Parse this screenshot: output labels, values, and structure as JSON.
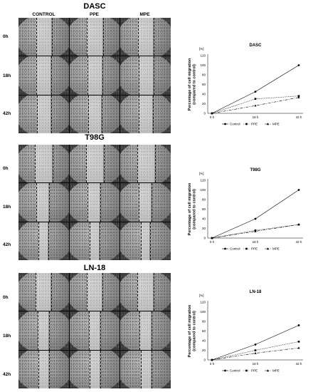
{
  "panels": [
    {
      "title": "DASC",
      "columns": [
        "CONTROL",
        "PPE",
        "MPE"
      ],
      "rows": [
        "0h",
        "18h",
        "42h"
      ]
    },
    {
      "title": "T98G",
      "columns": [],
      "rows": [
        "0h",
        "18h",
        "42h"
      ]
    },
    {
      "title": "LN-18",
      "columns": [],
      "rows": [
        "0h",
        "18h",
        "42h"
      ]
    }
  ],
  "chart_data": [
    {
      "type": "line",
      "title": "DASC",
      "unit_label": "[%]",
      "ylabel": "Percentage of cell migration (compared to control)",
      "categories": [
        "0 h",
        "18 h",
        "42 h"
      ],
      "ylim": [
        0,
        120
      ],
      "yticks": [
        "0",
        "20",
        "40",
        "60",
        "80",
        "100",
        "120"
      ],
      "series": [
        {
          "name": "Control",
          "values": [
            0,
            45,
            100
          ]
        },
        {
          "name": "PPE",
          "values": [
            0,
            30,
            36
          ]
        },
        {
          "name": "MPE",
          "values": [
            0,
            16,
            33
          ]
        }
      ]
    },
    {
      "type": "line",
      "title": "T98G",
      "unit_label": "[%]",
      "ylabel": "Percentage of cell migration (compared to control)",
      "categories": [
        "0 h",
        "18 h",
        "42 h"
      ],
      "ylim": [
        0,
        120
      ],
      "yticks": [
        "0",
        "20",
        "40",
        "60",
        "80",
        "100",
        "120"
      ],
      "series": [
        {
          "name": "Control",
          "values": [
            0,
            40,
            100
          ]
        },
        {
          "name": "PPE",
          "values": [
            0,
            16,
            28
          ]
        },
        {
          "name": "MPE",
          "values": [
            0,
            14,
            28
          ]
        }
      ]
    },
    {
      "type": "line",
      "title": "LN-18",
      "unit_label": "[%]",
      "ylabel": "Percentage of cell migration (compared to control)",
      "categories": [
        "0 h",
        "18 h",
        "42 h"
      ],
      "ylim": [
        0,
        120
      ],
      "yticks": [
        "0",
        "20",
        "40",
        "60",
        "80",
        "100",
        "120"
      ],
      "series": [
        {
          "name": "Control",
          "values": [
            0,
            32,
            72
          ]
        },
        {
          "name": "PPE",
          "values": [
            0,
            20,
            38
          ]
        },
        {
          "name": "MPE",
          "values": [
            0,
            14,
            25
          ]
        }
      ]
    }
  ]
}
